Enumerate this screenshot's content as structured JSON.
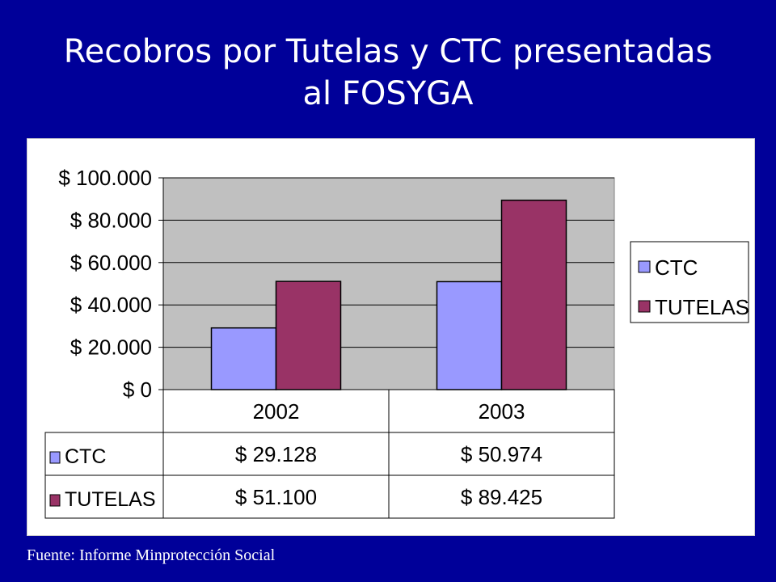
{
  "slide": {
    "title_line1": "Recobros por Tutelas y CTC presentadas",
    "title_line2": "al FOSYGA",
    "source": "Fuente: Informe Minprotección Social"
  },
  "chart_data": {
    "type": "bar",
    "categories": [
      "2002",
      "2003"
    ],
    "series": [
      {
        "name": "CTC",
        "values": [
          29128,
          50974
        ],
        "labels": [
          "$ 29.128",
          "$ 50.974"
        ],
        "color": "#9999ff"
      },
      {
        "name": "TUTELAS",
        "values": [
          51100,
          89425
        ],
        "labels": [
          "$ 51.100",
          "$ 89.425"
        ],
        "color": "#993366"
      }
    ],
    "ylim": [
      0,
      100000
    ],
    "yticks": [
      0,
      20000,
      40000,
      60000,
      80000,
      100000
    ],
    "ytick_labels": [
      "$ 0",
      "$ 20.000",
      "$ 40.000",
      "$ 60.000",
      "$ 80.000",
      "$ 100.000"
    ],
    "plot_background": "#c0c0c0",
    "grid": true,
    "legend_position": "right",
    "data_table": true
  }
}
